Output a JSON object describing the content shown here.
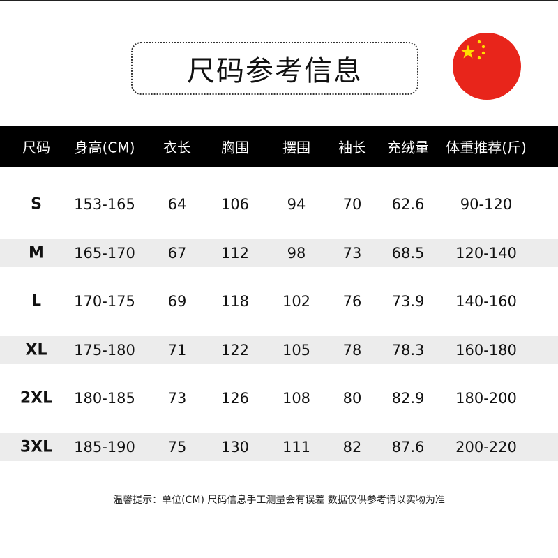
{
  "title": "尺码参考信息",
  "flag": {
    "icon": "china-flag-icon",
    "colors": {
      "red": "#e8251b",
      "star": "#ffde00"
    }
  },
  "header_color": "#000000",
  "stripe_color": "#ececec",
  "columns": [
    "尺码",
    "身高(CM)",
    "衣长",
    "胸围",
    "摆围",
    "袖长",
    "充绒量",
    "体重推荐(斤)"
  ],
  "rows": [
    [
      "S",
      "153-165",
      "64",
      "106",
      "94",
      "70",
      "62.6",
      "90-120"
    ],
    [
      "M",
      "165-170",
      "67",
      "112",
      "98",
      "73",
      "68.5",
      "120-140"
    ],
    [
      "L",
      "170-175",
      "69",
      "118",
      "102",
      "76",
      "73.9",
      "140-160"
    ],
    [
      "XL",
      "175-180",
      "71",
      "122",
      "105",
      "78",
      "78.3",
      "160-180"
    ],
    [
      "2XL",
      "180-185",
      "73",
      "126",
      "108",
      "80",
      "82.9",
      "180-200"
    ],
    [
      "3XL",
      "185-190",
      "75",
      "130",
      "111",
      "82",
      "87.6",
      "200-220"
    ]
  ],
  "note": "温馨提示：单位(CM) 尺码信息手工测量会有误差 数据仅供参考请以实物为准"
}
